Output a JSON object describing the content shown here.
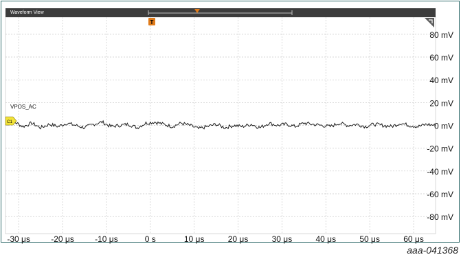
{
  "window": {
    "title": "Waveform View"
  },
  "channel": {
    "label": "VPOS_AC",
    "badge": "C1",
    "badge_color": "#f2e33a",
    "trace_color": "#1a1a1a"
  },
  "trigger": {
    "badge": "T",
    "color": "#e07b1a"
  },
  "figure_id": "aaa-041368",
  "chart_data": {
    "type": "line",
    "x_tick_labels": [
      "-30 μs",
      "-20 μs",
      "-10 μs",
      "0 s",
      "10 μs",
      "20 μs",
      "30 μs",
      "40 μs",
      "50 μs",
      "60 μs"
    ],
    "y_tick_labels": [
      "80 mV",
      "60 mV",
      "40 mV",
      "20 mV",
      "0 mV",
      "-20 mV",
      "-40 mV",
      "-60 mV",
      "-80 mV"
    ],
    "x_unit": "μs",
    "y_unit": "mV",
    "xlim": [
      -33,
      65
    ],
    "ylim": [
      -95,
      95
    ],
    "grid": true,
    "series": [
      {
        "name": "VPOS_AC",
        "description_values": "noise around 0 mV, approx ±3 mV",
        "x": [
          -33,
          -31,
          -29,
          -27,
          -25,
          -23,
          -21,
          -19,
          -17,
          -15,
          -13,
          -11,
          -9,
          -7,
          -5,
          -3,
          -1,
          1,
          3,
          5,
          7,
          9,
          11,
          13,
          15,
          17,
          19,
          21,
          23,
          25,
          27,
          29,
          31,
          33,
          35,
          37,
          39,
          41,
          43,
          45,
          47,
          49,
          51,
          53,
          55,
          57,
          59,
          61,
          63,
          65
        ],
        "y": [
          1,
          3,
          -1,
          2,
          -2,
          1,
          -1,
          2,
          0,
          -2,
          1,
          3,
          -1,
          0,
          1,
          -2,
          2,
          3,
          1,
          -1,
          2,
          0,
          -3,
          -1,
          1,
          -2,
          0,
          -1,
          1,
          -2,
          2,
          0,
          1,
          -1,
          2,
          1,
          0,
          -1,
          2,
          0,
          1,
          -1,
          1,
          0,
          -1,
          2,
          0,
          -1,
          1,
          0
        ]
      }
    ]
  }
}
